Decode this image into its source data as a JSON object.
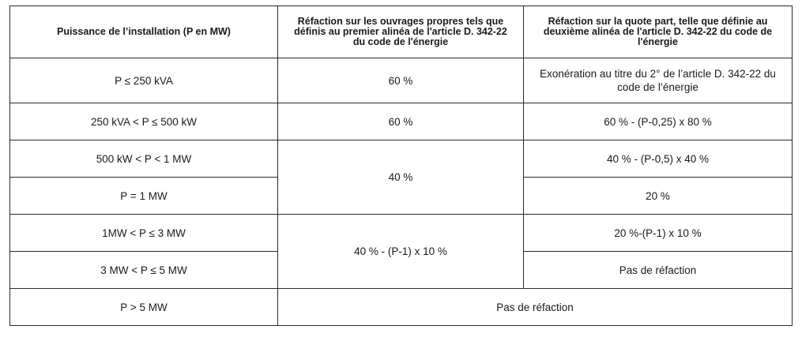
{
  "table": {
    "headers": [
      "Puissance de l’installation (P en MW)",
      "Réfaction sur les ouvrages propres tels que définis au premier alinéa de l'article D. 342-22 du code de l'énergie",
      "Réfaction sur la quote part, telle que définie au deuxième alinéa de l'article D. 342-22 du code de l'énergie"
    ],
    "rows": [
      {
        "puissance": "P ≤ 250 kVA",
        "ouvrages_propres": "60 %",
        "quote_part": "Exonération au titre du 2° de l’article D. 342-22 du code de l’énergie"
      },
      {
        "puissance": "250 kVA < P ≤ 500 kW",
        "ouvrages_propres": "60 %",
        "quote_part": "60 % - (P-0,25) x 80 %"
      },
      {
        "puissance": "500 kW < P < 1 MW",
        "ouvrages_propres": "40 %",
        "quote_part": "40 % - (P-0,5) x 40 %"
      },
      {
        "puissance": "P = 1 MW",
        "quote_part": "20 %"
      },
      {
        "puissance": "1MW < P ≤ 3 MW",
        "ouvrages_propres": "40 % - (P-1) x 10 %",
        "quote_part": "20 %-(P-1) x 10 %"
      },
      {
        "puissance": "3 MW < P ≤ 5 MW",
        "quote_part": "Pas de réfaction"
      },
      {
        "puissance": "P > 5 MW",
        "merged": "Pas de réfaction"
      }
    ]
  }
}
